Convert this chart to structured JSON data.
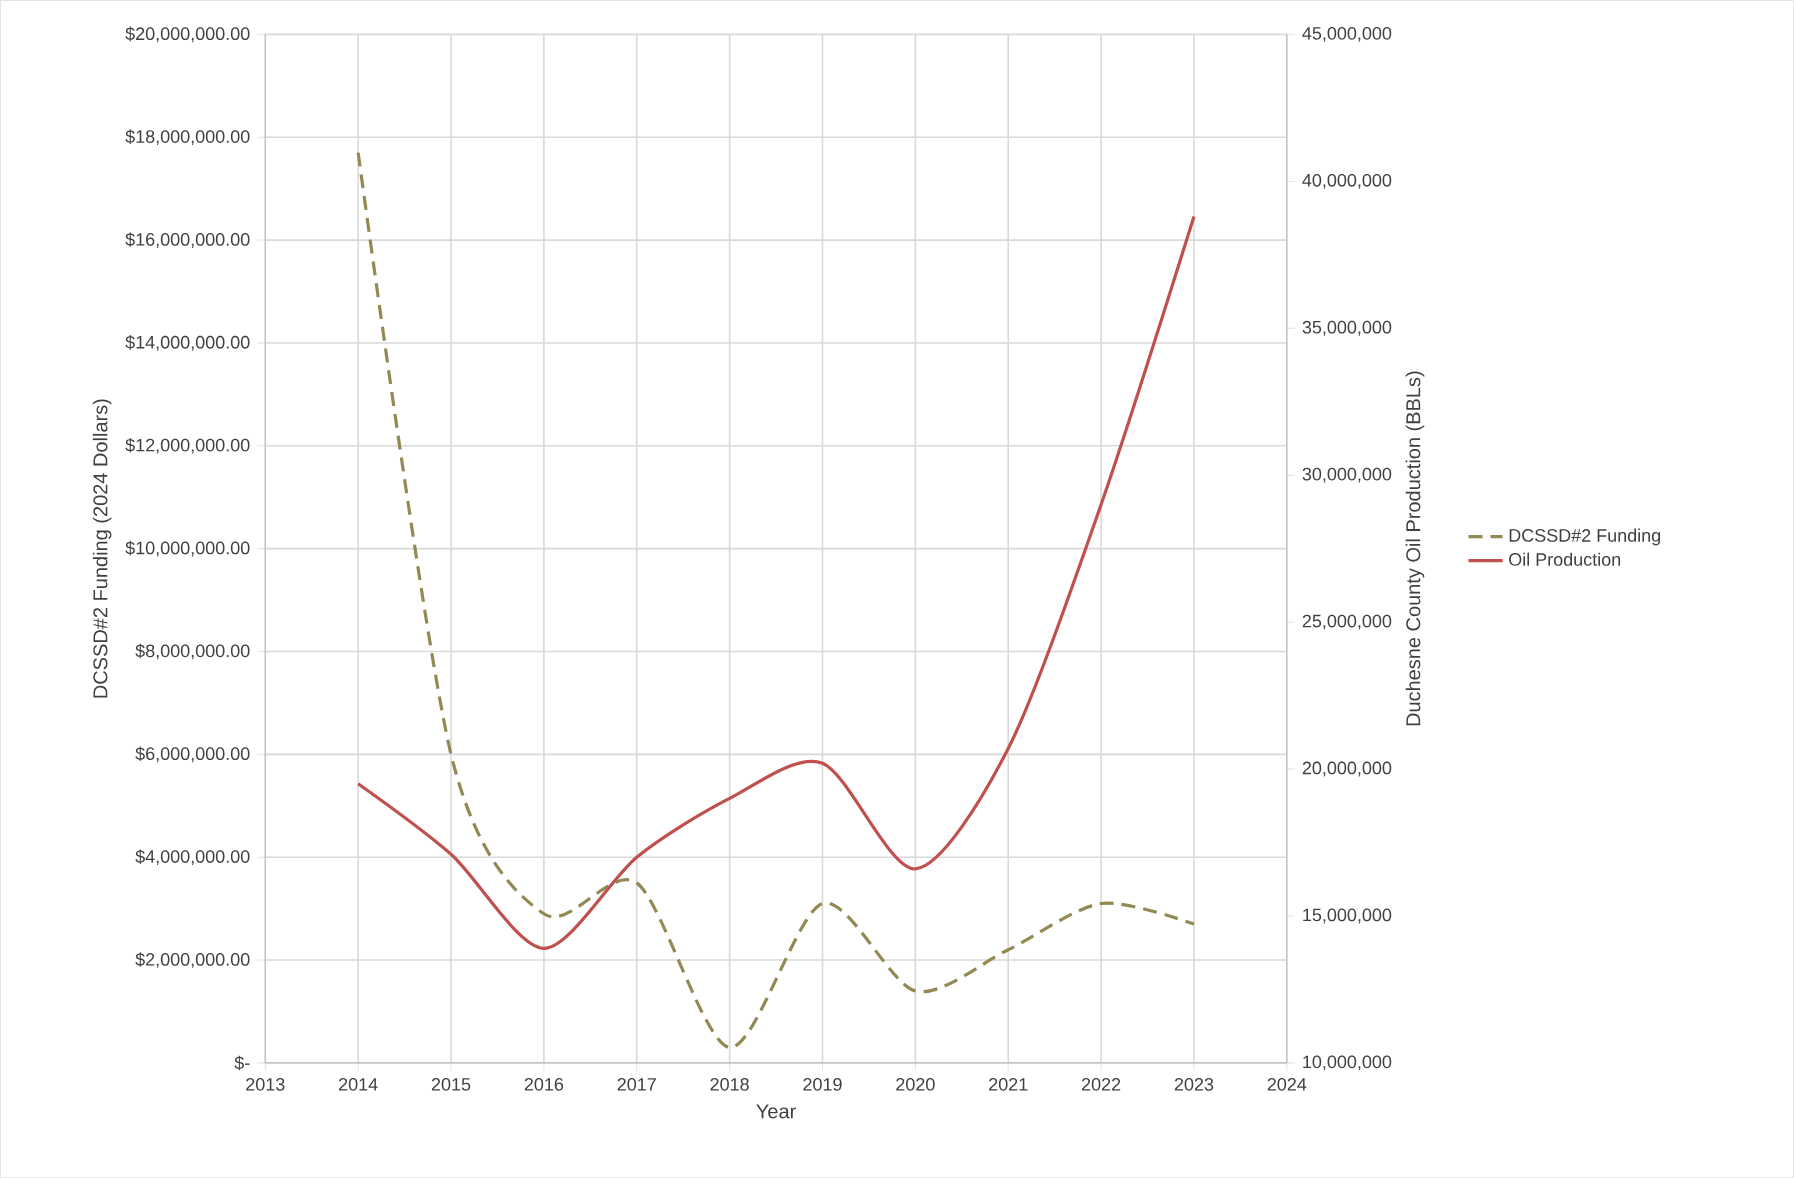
{
  "chart_data": {
    "type": "line",
    "x": [
      2014,
      2015,
      2016,
      2017,
      2018,
      2019,
      2020,
      2021,
      2022,
      2023
    ],
    "xlim": [
      2013,
      2024
    ],
    "xticks": [
      2013,
      2014,
      2015,
      2016,
      2017,
      2018,
      2019,
      2020,
      2021,
      2022,
      2023,
      2024
    ],
    "ylim": [
      0,
      20000000
    ],
    "yticks": [
      {
        "value": 0,
        "label": "$-"
      },
      {
        "value": 2000000,
        "label": "$2,000,000.00"
      },
      {
        "value": 4000000,
        "label": "$4,000,000.00"
      },
      {
        "value": 6000000,
        "label": "$6,000,000.00"
      },
      {
        "value": 8000000,
        "label": "$8,000,000.00"
      },
      {
        "value": 10000000,
        "label": "$10,000,000.00"
      },
      {
        "value": 12000000,
        "label": "$12,000,000.00"
      },
      {
        "value": 14000000,
        "label": "$14,000,000.00"
      },
      {
        "value": 16000000,
        "label": "$16,000,000.00"
      },
      {
        "value": 18000000,
        "label": "$18,000,000.00"
      },
      {
        "value": 20000000,
        "label": "$20,000,000.00"
      }
    ],
    "y2lim": [
      10000000,
      45000000
    ],
    "y2ticks": [
      {
        "value": 10000000,
        "label": "10,000,000"
      },
      {
        "value": 15000000,
        "label": "15,000,000"
      },
      {
        "value": 20000000,
        "label": "20,000,000"
      },
      {
        "value": 25000000,
        "label": "25,000,000"
      },
      {
        "value": 30000000,
        "label": "30,000,000"
      },
      {
        "value": 35000000,
        "label": "35,000,000"
      },
      {
        "value": 40000000,
        "label": "40,000,000"
      },
      {
        "value": 45000000,
        "label": "45,000,000"
      }
    ],
    "xlabel": "Year",
    "ylabel": "DCSSD#2 Funding (2024 Dollars)",
    "y2label": "Duchesne County Oil Production (BBLs)",
    "grid": true,
    "legend": "right",
    "series": [
      {
        "name": "DCSSD#2 Funding",
        "color": "#938953",
        "line_style": "dashed",
        "values": [
          17700000,
          6000000,
          2900000,
          3500000,
          300000,
          3100000,
          1400000,
          2200000,
          3100000,
          2700000
        ]
      },
      {
        "name": "Oil Production",
        "color": "#c0504d",
        "line_style": "solid",
        "axis": "y2",
        "values": [
          19500000,
          17100000,
          13900000,
          17000000,
          19000000,
          20200000,
          16600000,
          20700000,
          29000000,
          38800000
        ]
      }
    ]
  }
}
